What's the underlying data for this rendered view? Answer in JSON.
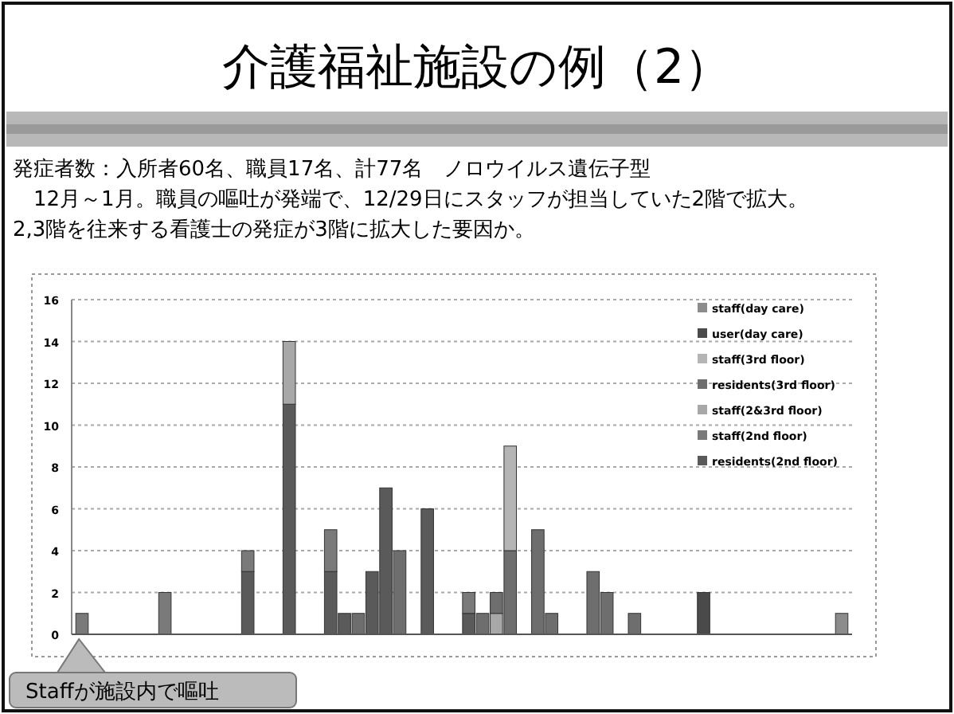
{
  "chart_data": {
    "type": "bar",
    "title": "介護福祉施設の例（2）",
    "subtitle": [
      "発症者数：入所者60名、職員17名、計77名　ノロウイルス遺伝子型",
      "　12月～1月。職員の嘔吐が発端で、12/29日にスタッフが担当していた2階で拡大。",
      "2,3階を往来する看護士の発症が3階に拡大した要因か。"
    ],
    "annotations": [
      "Staffが施設内で嘔吐"
    ],
    "categories": [
      null,
      null,
      null,
      null,
      null,
      null,
      null,
      null,
      null,
      null,
      null,
      null,
      null,
      null,
      null,
      null,
      null,
      null,
      null,
      null,
      null,
      null,
      null,
      null,
      null,
      null,
      null,
      null,
      null,
      null,
      null,
      null,
      null,
      null,
      null,
      null,
      null,
      null,
      null,
      null,
      null,
      null,
      null,
      null,
      null,
      null,
      null,
      null,
      null,
      null,
      null,
      null,
      null,
      null,
      null,
      null
    ],
    "stacked": true,
    "series": [
      {
        "name": "residents(2nd floor)",
        "color": "#5a5a5a",
        "values": [
          0,
          0,
          0,
          0,
          0,
          0,
          0,
          0,
          0,
          0,
          0,
          0,
          3,
          0,
          0,
          11,
          0,
          0,
          3,
          1,
          0,
          3,
          7,
          0,
          0,
          6,
          0,
          0,
          1,
          0,
          0,
          0,
          0,
          0,
          0,
          0,
          0,
          0,
          0,
          0,
          0,
          0,
          0,
          0,
          0,
          0,
          0,
          0,
          0,
          0,
          0,
          0,
          0,
          0,
          0,
          0
        ]
      },
      {
        "name": "staff(2nd floor)",
        "color": "#7a7a7a",
        "values": [
          1,
          0,
          0,
          0,
          0,
          0,
          2,
          0,
          0,
          0,
          0,
          0,
          1,
          0,
          0,
          0,
          0,
          0,
          2,
          0,
          0,
          0,
          0,
          0,
          0,
          0,
          0,
          0,
          1,
          0,
          0,
          0,
          0,
          0,
          0,
          0,
          0,
          0,
          0,
          0,
          0,
          0,
          0,
          0,
          0,
          0,
          0,
          0,
          0,
          0,
          0,
          0,
          0,
          0,
          0,
          0
        ]
      },
      {
        "name": "staff(2&3rd floor)",
        "color": "#a8a8a8",
        "values": [
          0,
          0,
          0,
          0,
          0,
          0,
          0,
          0,
          0,
          0,
          0,
          0,
          0,
          0,
          0,
          3,
          0,
          0,
          0,
          0,
          0,
          0,
          0,
          0,
          0,
          0,
          0,
          0,
          0,
          0,
          1,
          0,
          0,
          0,
          0,
          0,
          0,
          0,
          0,
          0,
          0,
          0,
          0,
          0,
          0,
          0,
          0,
          0,
          0,
          0,
          0,
          0,
          0,
          0,
          0,
          0
        ]
      },
      {
        "name": "residents(3rd floor)",
        "color": "#6e6e6e",
        "values": [
          0,
          0,
          0,
          0,
          0,
          0,
          0,
          0,
          0,
          0,
          0,
          0,
          0,
          0,
          0,
          0,
          0,
          0,
          0,
          0,
          1,
          0,
          0,
          4,
          0,
          0,
          0,
          0,
          0,
          1,
          1,
          4,
          0,
          5,
          1,
          0,
          0,
          3,
          2,
          0,
          1,
          0,
          0,
          0,
          0,
          0,
          0,
          0,
          0,
          0,
          0,
          0,
          0,
          0,
          0,
          0
        ]
      },
      {
        "name": "staff(3rd floor)",
        "color": "#b5b5b5",
        "values": [
          0,
          0,
          0,
          0,
          0,
          0,
          0,
          0,
          0,
          0,
          0,
          0,
          0,
          0,
          0,
          0,
          0,
          0,
          0,
          0,
          0,
          0,
          0,
          0,
          0,
          0,
          0,
          0,
          0,
          0,
          0,
          5,
          0,
          0,
          0,
          0,
          0,
          0,
          0,
          0,
          0,
          0,
          0,
          0,
          0,
          0,
          0,
          0,
          0,
          0,
          0,
          0,
          0,
          0,
          0,
          0
        ]
      },
      {
        "name": "user(day care)",
        "color": "#4a4a4a",
        "values": [
          0,
          0,
          0,
          0,
          0,
          0,
          0,
          0,
          0,
          0,
          0,
          0,
          0,
          0,
          0,
          0,
          0,
          0,
          0,
          0,
          0,
          0,
          0,
          0,
          0,
          0,
          0,
          0,
          0,
          0,
          0,
          0,
          0,
          0,
          0,
          0,
          0,
          0,
          0,
          0,
          0,
          0,
          0,
          0,
          0,
          2,
          0,
          0,
          0,
          0,
          0,
          0,
          0,
          0,
          0,
          0
        ]
      },
      {
        "name": "staff(day care)",
        "color": "#8c8c8c",
        "values": [
          0,
          0,
          0,
          0,
          0,
          0,
          0,
          0,
          0,
          0,
          0,
          0,
          0,
          0,
          0,
          0,
          0,
          0,
          0,
          0,
          0,
          0,
          0,
          0,
          0,
          0,
          0,
          0,
          0,
          0,
          0,
          0,
          0,
          0,
          0,
          0,
          0,
          0,
          0,
          0,
          0,
          0,
          0,
          0,
          0,
          0,
          0,
          0,
          0,
          0,
          0,
          0,
          0,
          0,
          0,
          1
        ]
      }
    ],
    "ylim": [
      0,
      16
    ],
    "yticks": [
      0,
      2,
      4,
      6,
      8,
      10,
      12,
      14,
      16
    ],
    "grid": "y",
    "legend": "top right"
  }
}
